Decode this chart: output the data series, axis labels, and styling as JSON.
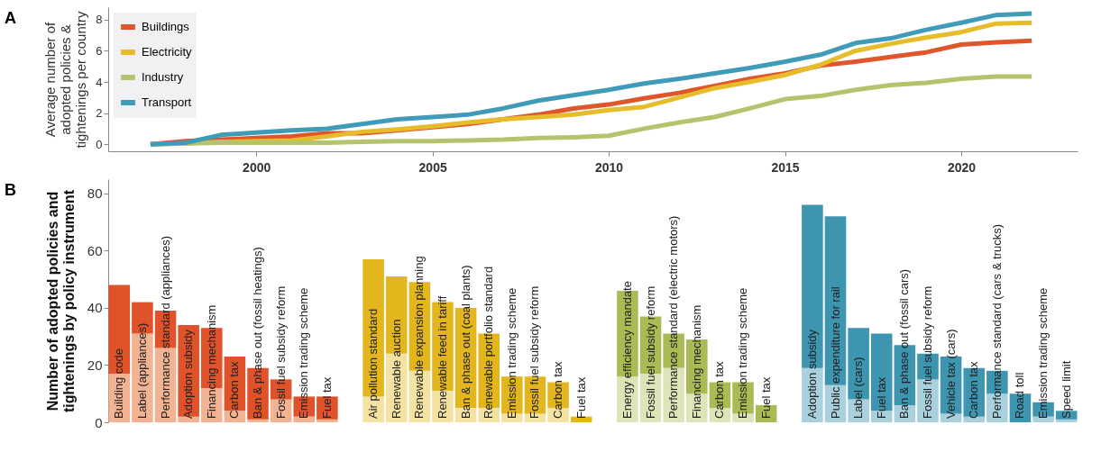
{
  "chart_data": [
    {
      "type": "line",
      "title": "A",
      "ylabel": "Average number of\nadopted policies &\ntightenings per country",
      "x": [
        1997,
        1998,
        1999,
        2000,
        2001,
        2002,
        2003,
        2004,
        2005,
        2006,
        2007,
        2008,
        2009,
        2010,
        2011,
        2012,
        2013,
        2014,
        2015,
        2016,
        2017,
        2018,
        2019,
        2020,
        2021,
        2022
      ],
      "series": [
        {
          "name": "Buildings",
          "color": "#e0562b",
          "values": [
            0,
            0.2,
            0.3,
            0.4,
            0.5,
            0.7,
            0.7,
            0.9,
            1.1,
            1.3,
            1.6,
            1.9,
            2.3,
            2.55,
            2.95,
            3.3,
            3.75,
            4.2,
            4.55,
            5.05,
            5.3,
            5.6,
            5.9,
            6.4,
            6.55,
            6.65
          ]
        },
        {
          "name": "Electricity",
          "color": "#e6bc2a",
          "values": [
            0,
            0.05,
            0.15,
            0.2,
            0.25,
            0.5,
            0.8,
            0.95,
            1.15,
            1.4,
            1.6,
            1.75,
            1.9,
            2.2,
            2.4,
            3.0,
            3.6,
            4.0,
            4.45,
            5.1,
            6.0,
            6.45,
            6.85,
            7.2,
            7.75,
            7.8
          ]
        },
        {
          "name": "Industry",
          "color": "#b4c46c",
          "values": [
            0,
            0.05,
            0.1,
            0.1,
            0.1,
            0.1,
            0.15,
            0.2,
            0.2,
            0.25,
            0.3,
            0.4,
            0.45,
            0.55,
            1.0,
            1.4,
            1.75,
            2.3,
            2.9,
            3.1,
            3.5,
            3.8,
            3.95,
            4.2,
            4.35,
            4.35
          ]
        },
        {
          "name": "Transport",
          "color": "#3f9bb8",
          "values": [
            0,
            0.1,
            0.6,
            0.75,
            0.9,
            1.0,
            1.3,
            1.6,
            1.75,
            1.9,
            2.3,
            2.8,
            3.15,
            3.5,
            3.9,
            4.2,
            4.55,
            4.9,
            5.3,
            5.75,
            6.5,
            6.8,
            7.35,
            7.8,
            8.3,
            8.4
          ]
        }
      ],
      "xlim": [
        1995.8,
        2023.3
      ],
      "xticks": [
        2000,
        2005,
        2010,
        2015,
        2020
      ],
      "ylim": [
        -0.45,
        8.8
      ],
      "yticks": [
        0,
        2,
        4,
        6,
        8
      ],
      "legend": "top left"
    },
    {
      "type": "bar",
      "title": "B",
      "stacked": true,
      "ylabel": "Number of adopted policies and\ntightenings by policy instrument",
      "categories": [
        "Building code",
        "Label (appliances)",
        "Performance standard (appliances)",
        "Adoption subsidy",
        "Financing mechanism",
        "Carbon tax",
        "Ban & phase out (fossil heatings)",
        "Fossil fuel subsidy reform",
        "Emission trading scheme",
        "Fuel tax",
        null,
        "Air pollution standard",
        "Renewable auction",
        "Renewable expansion planning",
        "Renewable feed in tariff",
        "Ban & phase out (coal plants)",
        "Renewable portfolio standard",
        "Emission trading scheme",
        "Fossil fuel subsidy reform",
        "Carbon tax",
        "Fuel tax",
        null,
        "Energy efficiency mandate",
        "Fossil fuel subsidy reform",
        "Performance standard (electric motors)",
        "Financing mechanism",
        "Carbon tax",
        "Emission trading scheme",
        "Fuel tax",
        null,
        "Adoption subsidy",
        "Public expenditure for rail",
        "Label (cars)",
        "Fuel tax",
        "Ban & phase out (fossil cars)",
        "Fossil fuel subsidy reform",
        "Vehicle tax (cars)",
        "Carbon tax",
        "Performance standard (cars & trucks)",
        "Road toll",
        "Emission trading scheme",
        "Speed limit"
      ],
      "series": [
        {
          "values": [
            17,
            31,
            26,
            2,
            12,
            4,
            1,
            8,
            2,
            1,
            null,
            9,
            24,
            18,
            11,
            5,
            5,
            3,
            3,
            5,
            0,
            null,
            16,
            17,
            19,
            10,
            5,
            3,
            0,
            null,
            19,
            13,
            8,
            4,
            6,
            15,
            3,
            2,
            10,
            0,
            2,
            1
          ],
          "colors": [
            "#f2b393",
            "#f2b393",
            "#f2b393",
            "#f2b393",
            "#f2b393",
            "#f2b393",
            "#f2b393",
            "#f2b393",
            "#f2b393",
            "#f2b393",
            null,
            "#f4e2a2",
            "#f4e2a2",
            "#f4e2a2",
            "#f4e2a2",
            "#f4e2a2",
            "#f4e2a2",
            "#f4e2a2",
            "#f4e2a2",
            "#f4e2a2",
            "#f4e2a2",
            null,
            "#dbe5b7",
            "#dbe5b7",
            "#dbe5b7",
            "#dbe5b7",
            "#dbe5b7",
            "#dbe5b7",
            "#dbe5b7",
            null,
            "#a9d0dd",
            "#a9d0dd",
            "#a9d0dd",
            "#a9d0dd",
            "#a9d0dd",
            "#a9d0dd",
            "#a9d0dd",
            "#a9d0dd",
            "#a9d0dd",
            "#a9d0dd",
            "#a9d0dd",
            "#a9d0dd"
          ]
        },
        {
          "values": [
            31,
            11,
            13,
            32,
            21,
            19,
            18,
            7,
            7,
            8,
            null,
            48,
            27,
            31,
            31,
            35,
            26,
            13,
            13,
            9,
            2,
            null,
            30,
            20,
            12,
            19,
            9,
            11,
            6,
            null,
            57,
            59,
            25,
            27,
            21,
            9,
            20,
            17,
            8,
            10,
            5,
            3
          ],
          "colors": [
            "#e0522a",
            "#e0522a",
            "#e0522a",
            "#e0522a",
            "#e0522a",
            "#e0522a",
            "#e0522a",
            "#e0522a",
            "#e0522a",
            "#e0522a",
            null,
            "#e3b61e",
            "#e3b61e",
            "#e3b61e",
            "#e3b61e",
            "#e3b61e",
            "#e3b61e",
            "#e3b61e",
            "#e3b61e",
            "#e3b61e",
            "#e3b61e",
            null,
            "#a8bb55",
            "#a8bb55",
            "#a8bb55",
            "#a8bb55",
            "#a8bb55",
            "#a8bb55",
            "#a8bb55",
            null,
            "#3d95b0",
            "#3d95b0",
            "#3d95b0",
            "#3d95b0",
            "#3d95b0",
            "#3d95b0",
            "#3d95b0",
            "#3d95b0",
            "#3d95b0",
            "#3d95b0",
            "#3d95b0",
            "#3d95b0"
          ]
        }
      ],
      "ylim": [
        0,
        85
      ],
      "yticks": [
        0,
        20,
        40,
        60,
        80
      ]
    }
  ]
}
